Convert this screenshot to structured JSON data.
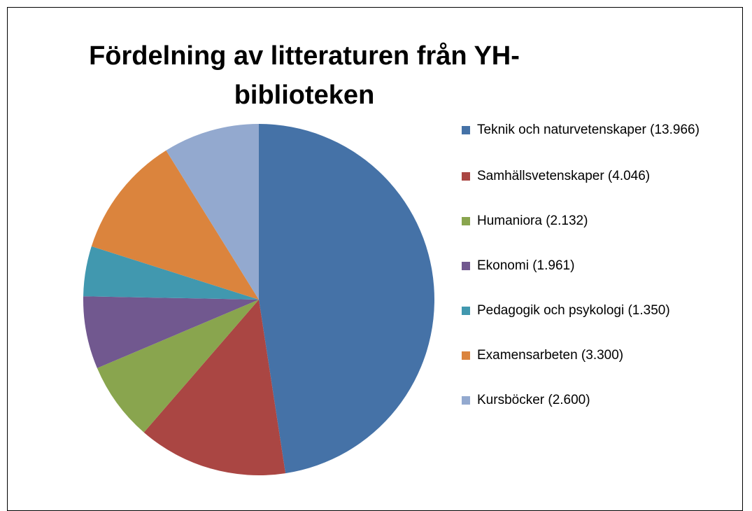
{
  "chart_data": {
    "type": "pie",
    "title": "Fördelning av litteraturen från YH-biblioteken",
    "categories": [
      "Teknik och naturvetenskaper (13.966)",
      "Samhällsvetenskaper (4.046)",
      "Humaniora (2.132)",
      "Ekonomi (1.961)",
      "Pedagogik och psykologi (1.350)",
      "Examensarbeten (3.300)",
      "Kursböcker (2.600)"
    ],
    "values": [
      13966,
      4046,
      2132,
      1961,
      1350,
      3300,
      2600
    ],
    "colors": [
      "#4572a7",
      "#aa4643",
      "#89a54e",
      "#71588f",
      "#4198af",
      "#db843d",
      "#93a9cf"
    ],
    "legend": "right"
  }
}
